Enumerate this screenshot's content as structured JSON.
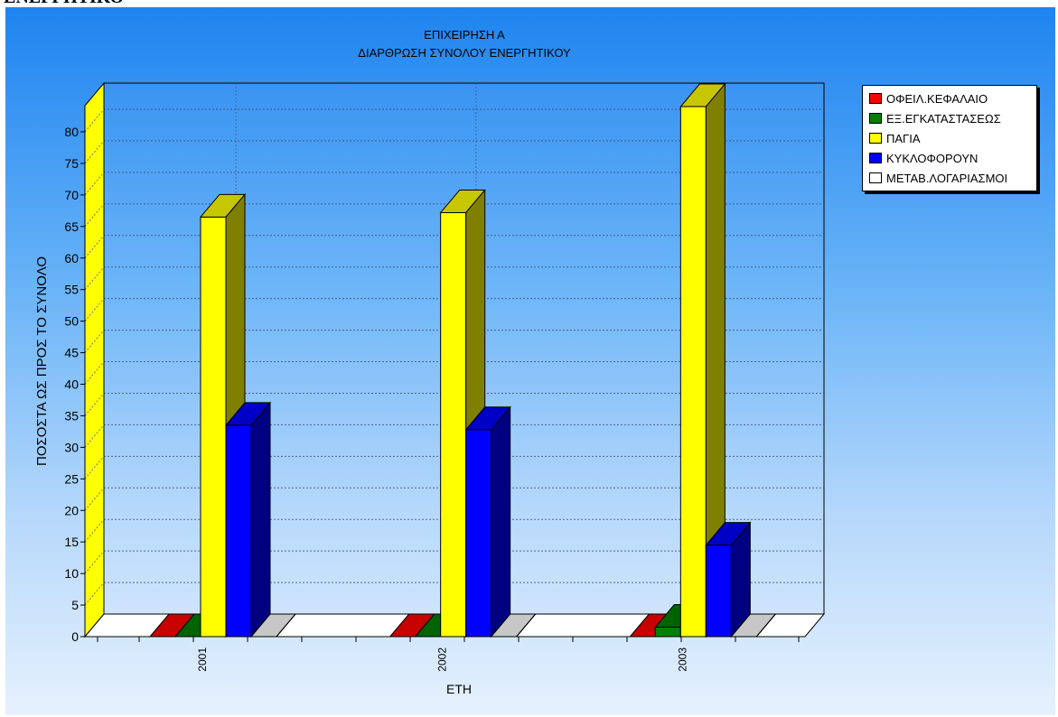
{
  "page_header": "ΕΝΕΡΓΗΤΙΚΟ",
  "chart_data": {
    "type": "bar",
    "title": "ΕΠΙΧΕΙΡΗΣΗ Α",
    "subtitle": "ΔΙΑΡΘΡΩΣΗ ΣΥΝΟΛΟΥ ΕΝΕΡΓΗΤΙΚΟΥ",
    "xlabel": "ΕΤΗ",
    "ylabel": "ΠΟΣΟΣΤΑ ΩΣ ΠΡΟΣ ΤΟ ΣΥΝΟΛΟ",
    "categories": [
      "2001",
      "2002",
      "2003"
    ],
    "ylim": [
      0,
      80
    ],
    "yticks": [
      0,
      5,
      10,
      15,
      20,
      25,
      30,
      35,
      40,
      45,
      50,
      55,
      60,
      65,
      70,
      75,
      80
    ],
    "grid": true,
    "three_d": true,
    "legend_position": "top-right",
    "series": [
      {
        "name": "ΟΦΕΙΛ.ΚΕΦΑΛΑΙΟ",
        "values": [
          0,
          0,
          0
        ],
        "color": "#ff0000"
      },
      {
        "name": "ΕΞ.ΕΓΚΑΤΑΣΤΑΣΕΩΣ",
        "values": [
          0,
          0,
          1.5
        ],
        "color": "#008000"
      },
      {
        "name": "ΠΑΓΙΑ",
        "values": [
          66.5,
          67.2,
          84
        ],
        "color": "#ffff00"
      },
      {
        "name": "ΚΥΚΛΟΦΟΡΟΥΝ",
        "values": [
          33.5,
          32.8,
          14.5
        ],
        "color": "#0000ff"
      },
      {
        "name": "ΜΕΤΑΒ.ΛΟΓΑΡΙΑΣΜΟΙ",
        "values": [
          0,
          0,
          0
        ],
        "color": "#ffffff"
      }
    ]
  }
}
